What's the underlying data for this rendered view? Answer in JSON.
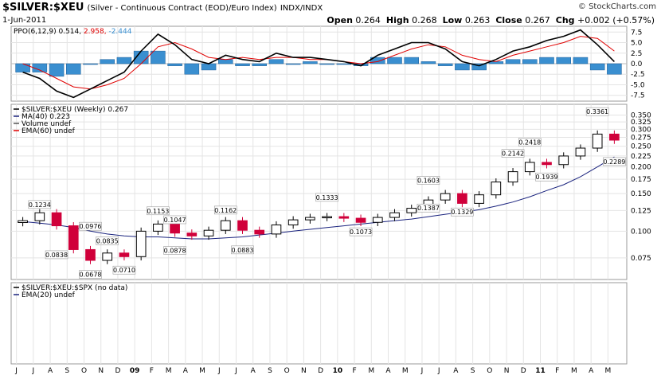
{
  "header": {
    "symbol": "$SILVER:$XEU",
    "description": "(Silver - Continuous Contract (EOD)/Euro Index)",
    "exchange": "INDX/INDX",
    "watermark": "© StockCharts.com",
    "date": "1-Jun-2011",
    "open_label": "Open",
    "open": "0.264",
    "high_label": "High",
    "high": "0.268",
    "low_label": "Low",
    "low": "0.263",
    "close_label": "Close",
    "close": "0.267",
    "chg_label": "Chg",
    "chg": "+0.002 (+0.57%)"
  },
  "ppo_panel": {
    "legend_name": "PPO(6,12,9)",
    "legend_values": [
      "0.514,",
      "2.958,",
      "-2.444"
    ],
    "legend_colors": [
      "#000000",
      "#e00000",
      "#3a8fd0"
    ],
    "y_ticks": [
      "7.5",
      "5.0",
      "2.5",
      "0.0",
      "-2.5",
      "-5.0",
      "-7.5"
    ]
  },
  "price_panel": {
    "legend": [
      "$SILVER:$XEU (Weekly) 0.267",
      "MA(40) 0.223",
      "Volume undef",
      "EMA(60) undef"
    ],
    "legend_colors": [
      "#000000",
      "#1a237e",
      "#555555",
      "#e00000"
    ],
    "y_ticks": [
      "0.350",
      "0.325",
      "0.300",
      "0.275",
      "0.250",
      "0.225",
      "0.200",
      "0.175",
      "0.150",
      "0.125",
      "0.100",
      "0.075"
    ],
    "annotations": [
      "0.1234",
      "0.0976",
      "0.0838",
      "0.0678",
      "0.0835",
      "0.0710",
      "0.1153",
      "0.1047",
      "0.0878",
      "0.1162",
      "0.0883",
      "0.1333",
      "0.1073",
      "0.1603",
      "0.1387",
      "0.1329",
      "0.2142",
      "0.2418",
      "0.1939",
      "0.3361",
      "0.2289"
    ]
  },
  "spx_panel": {
    "legend": [
      "$SILVER:$XEU:$SPX (no data)",
      "EMA(20) undef"
    ],
    "legend_colors": [
      "#000000",
      "#1a237e"
    ]
  },
  "x_axis": {
    "labels": [
      "J",
      "J",
      "A",
      "S",
      "O",
      "N",
      "D",
      "09",
      "F",
      "M",
      "A",
      "M",
      "J",
      "J",
      "A",
      "S",
      "O",
      "N",
      "D",
      "10",
      "F",
      "M",
      "A",
      "M",
      "J",
      "J",
      "A",
      "S",
      "O",
      "N",
      "D",
      "11",
      "F",
      "M",
      "A",
      "M"
    ]
  },
  "chart_data": {
    "type": "line",
    "title": "$SILVER:$XEU (Weekly)",
    "period": "Jun 2008 - Jun 2011",
    "scale": "log",
    "ylim": [
      0.062,
      0.37
    ],
    "x": [
      "Jun 2008",
      "Jul 2008",
      "Aug 2008",
      "Sep 2008",
      "Oct 2008",
      "Nov 2008",
      "Dec 2008",
      "Jan 2009",
      "Feb 2009",
      "Mar 2009",
      "Apr 2009",
      "May 2009",
      "Jun 2009",
      "Jul 2009",
      "Aug 2009",
      "Sep 2009",
      "Oct 2009",
      "Nov 2009",
      "Dec 2009",
      "Jan 2010",
      "Feb 2010",
      "Mar 2010",
      "Apr 2010",
      "May 2010",
      "Jun 2010",
      "Jul 2010",
      "Aug 2010",
      "Sep 2010",
      "Oct 2010",
      "Nov 2010",
      "Dec 2010",
      "Jan 2011",
      "Feb 2011",
      "Mar 2011",
      "Apr 2011",
      "May 2011"
    ],
    "series": [
      {
        "name": "$SILVER:$XEU",
        "values": [
          0.112,
          0.122,
          0.106,
          0.082,
          0.073,
          0.079,
          0.076,
          0.1,
          0.108,
          0.098,
          0.095,
          0.101,
          0.112,
          0.101,
          0.097,
          0.107,
          0.113,
          0.116,
          0.117,
          0.115,
          0.11,
          0.116,
          0.122,
          0.128,
          0.14,
          0.15,
          0.135,
          0.148,
          0.17,
          0.19,
          0.21,
          0.205,
          0.225,
          0.245,
          0.285,
          0.267
        ]
      },
      {
        "name": "MA(40)",
        "values": [
          0.111,
          0.109,
          0.107,
          0.104,
          0.1,
          0.097,
          0.095,
          0.094,
          0.094,
          0.093,
          0.092,
          0.092,
          0.093,
          0.094,
          0.096,
          0.098,
          0.1,
          0.102,
          0.104,
          0.106,
          0.108,
          0.11,
          0.112,
          0.114,
          0.117,
          0.12,
          0.123,
          0.126,
          0.131,
          0.137,
          0.145,
          0.155,
          0.165,
          0.18,
          0.2,
          0.223
        ]
      }
    ],
    "annotations": [
      {
        "x": "Jul 2008",
        "y": 0.1234,
        "text": "0.1234"
      },
      {
        "x": "Oct 2008",
        "y": 0.0976,
        "text": "0.0976"
      },
      {
        "x": "Aug 2008",
        "y": 0.0838,
        "text": "0.0838"
      },
      {
        "x": "Oct 2008",
        "y": 0.0678,
        "text": "0.0678"
      },
      {
        "x": "Nov 2008",
        "y": 0.0835,
        "text": "0.0835"
      },
      {
        "x": "Dec 2008",
        "y": 0.071,
        "text": "0.0710"
      },
      {
        "x": "Feb 2009",
        "y": 0.1153,
        "text": "0.1153"
      },
      {
        "x": "Mar 2009",
        "y": 0.1047,
        "text": "0.1047"
      },
      {
        "x": "Mar 2009",
        "y": 0.0878,
        "text": "0.0878"
      },
      {
        "x": "Jun 2009",
        "y": 0.1162,
        "text": "0.1162"
      },
      {
        "x": "Jul 2009",
        "y": 0.0883,
        "text": "0.0883"
      },
      {
        "x": "Dec 2009",
        "y": 0.1333,
        "text": "0.1333"
      },
      {
        "x": "Feb 2010",
        "y": 0.1073,
        "text": "0.1073"
      },
      {
        "x": "Jun 2010",
        "y": 0.1603,
        "text": "0.1603"
      },
      {
        "x": "Jun 2010",
        "y": 0.1387,
        "text": "0.1387"
      },
      {
        "x": "Aug 2010",
        "y": 0.1329,
        "text": "0.1329"
      },
      {
        "x": "Nov 2010",
        "y": 0.2142,
        "text": "0.2142"
      },
      {
        "x": "Dec 2010",
        "y": 0.2418,
        "text": "0.2418"
      },
      {
        "x": "Jan 2011",
        "y": 0.1939,
        "text": "0.1939"
      },
      {
        "x": "Apr 2011",
        "y": 0.3361,
        "text": "0.3361"
      },
      {
        "x": "May 2011",
        "y": 0.2289,
        "text": "0.2289"
      }
    ],
    "ppo": {
      "name": "PPO(6,12,9)",
      "ylim": [
        -8.5,
        8.5
      ],
      "ppo_line": [
        -2.0,
        -3.5,
        -6.5,
        -8.0,
        -6.0,
        -4.0,
        -2.0,
        3.0,
        7.0,
        4.5,
        1.0,
        0.0,
        2.0,
        1.0,
        0.5,
        2.5,
        1.5,
        1.5,
        1.0,
        0.5,
        -0.5,
        2.0,
        3.5,
        5.0,
        5.0,
        3.5,
        0.5,
        -0.5,
        1.0,
        3.0,
        4.0,
        5.5,
        6.5,
        8.0,
        4.5,
        0.5
      ],
      "signal_line": [
        0.0,
        -1.5,
        -3.5,
        -5.5,
        -6.0,
        -5.0,
        -3.5,
        0.0,
        4.0,
        5.0,
        3.5,
        1.5,
        1.0,
        1.5,
        1.0,
        1.5,
        1.5,
        1.0,
        1.0,
        0.5,
        0.0,
        0.5,
        2.0,
        3.5,
        4.5,
        4.0,
        2.0,
        1.0,
        0.5,
        2.0,
        3.0,
        4.0,
        5.0,
        6.5,
        6.0,
        3.0
      ]
    }
  }
}
